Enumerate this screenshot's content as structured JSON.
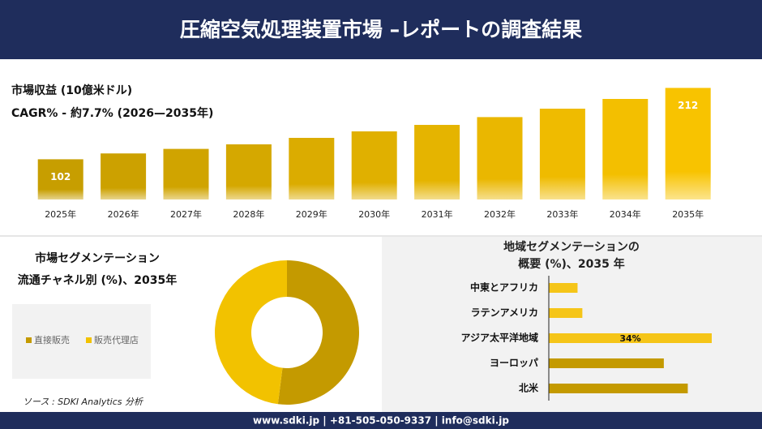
{
  "header": {
    "title": "圧縮空気処理装置市場 –レポートの調査結果"
  },
  "chart_data": [
    {
      "type": "bar",
      "title": "市場収益 (10億米ドル)",
      "subtitle": "CAGR% - 約7.7% (2026—2035年)",
      "categories": [
        "2025年",
        "2026年",
        "2027年",
        "2028年",
        "2029年",
        "2030年",
        "2031年",
        "2032年",
        "2033年",
        "2034年",
        "2035年"
      ],
      "values": [
        102,
        111,
        118,
        125,
        135,
        145,
        155,
        167,
        180,
        195,
        212
      ],
      "colors": [
        "#c79e00",
        "#cca100",
        "#d0a400",
        "#d5a800",
        "#dbac00",
        "#e0b000",
        "#e5b400",
        "#eab700",
        "#efbb00",
        "#f3bf00",
        "#f8c300"
      ],
      "ylim": [
        40,
        215
      ]
    },
    {
      "type": "donut",
      "title": "市場セグメンテーション",
      "subtitle": "流通チャネル別 (%)、2035年",
      "series": [
        {
          "name": "直接販売",
          "color": "#c49a00",
          "values": [
            52
          ]
        },
        {
          "name": "販売代理店",
          "color": "#f2c200",
          "values": [
            48
          ]
        }
      ]
    },
    {
      "type": "barh",
      "title": "地域セグメンテーションの",
      "subtitle": "概要 (%)、2035 年",
      "categories": [
        "中東とアフリカ",
        "ラテンアメリカ",
        "アジア太平洋地域",
        "ヨーロッパ",
        "北米"
      ],
      "values": [
        6,
        7,
        34,
        24,
        29
      ],
      "value_labels": [
        null,
        null,
        "34%",
        null,
        null
      ],
      "colors": [
        "#f5c518",
        "#f5c518",
        "#f5c518",
        "#c49a00",
        "#c49a00"
      ],
      "xlim": [
        0,
        34
      ]
    }
  ],
  "source": "ソース : SDKI Analytics 分析",
  "footer": "www.sdki.jp | +81-505-050-9337 | info@sdki.jp"
}
